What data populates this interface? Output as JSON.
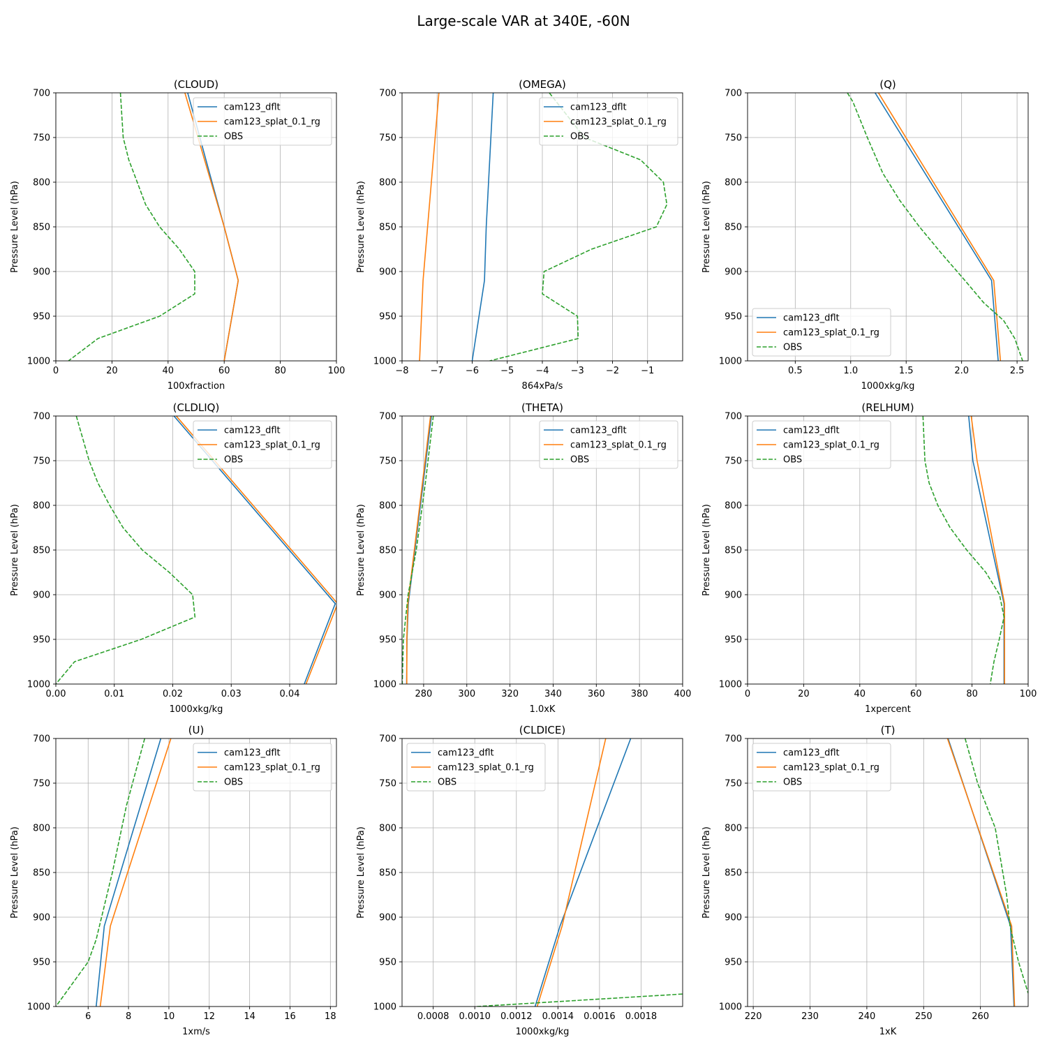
{
  "figure": {
    "suptitle": "Large-scale VAR at 340E, -60N",
    "ylabel": "Pressure Level (hPa)",
    "colors": {
      "cam123_dflt": "#1f77b4",
      "cam123_splat_0.1_rg": "#ff7f0e",
      "OBS": "#2ca02c"
    }
  },
  "chart_data": [
    {
      "type": "line",
      "title": "(CLOUD)",
      "xlabel": "100xfraction",
      "ylabel": "Pressure Level (hPa)",
      "xlim": [
        0,
        100
      ],
      "ylim": [
        1000,
        700
      ],
      "xticks": [
        0,
        20,
        40,
        60,
        80,
        100
      ],
      "xtick_labels": [
        "0",
        "20",
        "40",
        "60",
        "80",
        "100"
      ],
      "yticks": [
        700,
        750,
        800,
        850,
        900,
        950,
        1000
      ],
      "grid": true,
      "legend_loc": "upper right",
      "series": [
        {
          "name": "cam123_dflt",
          "style": "solid",
          "color": "#1f77b4",
          "x": [
            47,
            60,
            65,
            60
          ],
          "y": [
            700,
            850,
            910,
            1000
          ]
        },
        {
          "name": "cam123_splat_0.1_rg",
          "style": "solid",
          "color": "#ff7f0e",
          "x": [
            46,
            60,
            65,
            60
          ],
          "y": [
            700,
            850,
            910,
            1000
          ]
        },
        {
          "name": "OBS",
          "style": "dashed",
          "color": "#2ca02c",
          "x": [
            23,
            24,
            26,
            29,
            32,
            37,
            44,
            49.5,
            49.5,
            37,
            15,
            4.5
          ],
          "y": [
            700,
            750,
            775,
            800,
            825,
            850,
            875,
            900,
            925,
            950,
            975,
            1000
          ]
        }
      ]
    },
    {
      "type": "line",
      "title": "(OMEGA)",
      "xlabel": "864xPa/s",
      "ylabel": "Pressure Level (hPa)",
      "xlim": [
        -8,
        0
      ],
      "ylim": [
        1000,
        700
      ],
      "xticks": [
        -8,
        -7,
        -6,
        -5,
        -4,
        -3,
        -2,
        -1
      ],
      "xtick_labels": [
        "−8",
        "−7",
        "−6",
        "−5",
        "−4",
        "−3",
        "−2",
        "−1"
      ],
      "yticks": [
        700,
        750,
        800,
        850,
        900,
        950,
        1000
      ],
      "grid": true,
      "legend_loc": "upper right",
      "series": [
        {
          "name": "cam123_dflt",
          "style": "solid",
          "color": "#1f77b4",
          "x": [
            -5.4,
            -5.6,
            -5.65,
            -6.0
          ],
          "y": [
            700,
            850,
            910,
            1000
          ]
        },
        {
          "name": "cam123_splat_0.1_rg",
          "style": "solid",
          "color": "#ff7f0e",
          "x": [
            -6.95,
            -7.4,
            -7.5
          ],
          "y": [
            700,
            910,
            1000
          ]
        },
        {
          "name": "OBS",
          "style": "dashed",
          "color": "#2ca02c",
          "x": [
            -3.8,
            -2.8,
            -1.2,
            -0.55,
            -0.45,
            -0.75,
            -2.6,
            -3.95,
            -4.0,
            -3.0,
            -2.98,
            -5.5
          ],
          "y": [
            700,
            750,
            775,
            800,
            825,
            850,
            875,
            900,
            925,
            950,
            975,
            1000
          ]
        }
      ]
    },
    {
      "type": "line",
      "title": "(Q)",
      "xlabel": "1000xkg/kg",
      "ylabel": "Pressure Level (hPa)",
      "xlim": [
        0.07,
        2.6
      ],
      "ylim": [
        1000,
        700
      ],
      "xticks": [
        0.5,
        1.0,
        1.5,
        2.0,
        2.5
      ],
      "xtick_labels": [
        "0.5",
        "1.0",
        "1.5",
        "2.0",
        "2.5"
      ],
      "yticks": [
        700,
        750,
        800,
        850,
        900,
        950,
        1000
      ],
      "grid": true,
      "legend_loc": "lower left",
      "series": [
        {
          "name": "cam123_dflt",
          "style": "solid",
          "color": "#1f77b4",
          "x": [
            1.22,
            2.27,
            2.33
          ],
          "y": [
            700,
            910,
            1000
          ]
        },
        {
          "name": "cam123_splat_0.1_rg",
          "style": "solid",
          "color": "#ff7f0e",
          "x": [
            1.25,
            2.29,
            2.35
          ],
          "y": [
            700,
            910,
            1000
          ]
        },
        {
          "name": "OBS",
          "style": "dashed",
          "color": "#2ca02c",
          "x": [
            0.97,
            1.02,
            1.15,
            1.29,
            1.44,
            1.62,
            1.82,
            2.03,
            2.2,
            2.38,
            2.48,
            2.55
          ],
          "y": [
            700,
            710,
            750,
            790,
            820,
            850,
            880,
            910,
            935,
            955,
            975,
            1000
          ]
        }
      ]
    },
    {
      "type": "line",
      "title": "(CLDLIQ)",
      "xlabel": "1000xkg/kg",
      "ylabel": "Pressure Level (hPa)",
      "xlim": [
        0,
        0.048
      ],
      "ylim": [
        1000,
        700
      ],
      "xticks": [
        0.0,
        0.01,
        0.02,
        0.03,
        0.04
      ],
      "xtick_labels": [
        "0.00",
        "0.01",
        "0.02",
        "0.03",
        "0.04"
      ],
      "yticks": [
        700,
        750,
        800,
        850,
        900,
        950,
        1000
      ],
      "grid": true,
      "legend_loc": "upper right",
      "series": [
        {
          "name": "cam123_dflt",
          "style": "solid",
          "color": "#1f77b4",
          "x": [
            0.0202,
            0.0478,
            0.0425
          ],
          "y": [
            700,
            910,
            1000
          ]
        },
        {
          "name": "cam123_splat_0.1_rg",
          "style": "solid",
          "color": "#ff7f0e",
          "x": [
            0.0206,
            0.0482,
            0.0428
          ],
          "y": [
            700,
            910,
            1000
          ]
        },
        {
          "name": "OBS",
          "style": "dashed",
          "color": "#2ca02c",
          "x": [
            0.0035,
            0.0046,
            0.0057,
            0.0072,
            0.0092,
            0.0115,
            0.0148,
            0.0194,
            0.0234,
            0.0238,
            0.0146,
            0.0032,
            0.0
          ],
          "y": [
            700,
            725,
            750,
            775,
            800,
            825,
            850,
            875,
            900,
            925,
            950,
            975,
            1000
          ]
        }
      ]
    },
    {
      "type": "line",
      "title": "(THETA)",
      "xlabel": "1.0xK",
      "ylabel": "Pressure Level (hPa)",
      "xlim": [
        270,
        400
      ],
      "ylim": [
        1000,
        700
      ],
      "xticks": [
        280,
        300,
        320,
        340,
        360,
        380,
        400
      ],
      "xtick_labels": [
        "280",
        "300",
        "320",
        "340",
        "360",
        "380",
        "400"
      ],
      "yticks": [
        700,
        750,
        800,
        850,
        900,
        950,
        1000
      ],
      "grid": true,
      "legend_loc": "upper right",
      "series": [
        {
          "name": "cam123_dflt",
          "style": "solid",
          "color": "#1f77b4",
          "x": [
            283.6,
            272.9,
            272.3,
            272.1
          ],
          "y": [
            700,
            910,
            950,
            1000
          ]
        },
        {
          "name": "cam123_splat_0.1_rg",
          "style": "solid",
          "color": "#ff7f0e",
          "x": [
            283.2,
            272.7,
            272.2,
            272.2
          ],
          "y": [
            700,
            910,
            950,
            1000
          ]
        },
        {
          "name": "OBS",
          "style": "dashed",
          "color": "#2ca02c",
          "x": [
            284.5,
            280.8,
            276.6,
            272.8,
            270.6,
            270.1
          ],
          "y": [
            700,
            775,
            850,
            900,
            950,
            1000
          ]
        }
      ]
    },
    {
      "type": "line",
      "title": "(RELHUM)",
      "xlabel": "1xpercent",
      "ylabel": "Pressure Level (hPa)",
      "xlim": [
        0,
        100
      ],
      "ylim": [
        1000,
        700
      ],
      "xticks": [
        0,
        20,
        40,
        60,
        80,
        100
      ],
      "xtick_labels": [
        "0",
        "20",
        "40",
        "60",
        "80",
        "100"
      ],
      "yticks": [
        700,
        750,
        800,
        850,
        900,
        950,
        1000
      ],
      "grid": true,
      "legend_loc": "upper left",
      "series": [
        {
          "name": "cam123_dflt",
          "style": "solid",
          "color": "#1f77b4",
          "x": [
            78.8,
            80.3,
            91.4,
            91.4
          ],
          "y": [
            700,
            750,
            910,
            1000
          ]
        },
        {
          "name": "cam123_splat_0.1_rg",
          "style": "solid",
          "color": "#ff7f0e",
          "x": [
            79.7,
            81.8,
            91.6,
            91.6
          ],
          "y": [
            700,
            750,
            910,
            1000
          ]
        },
        {
          "name": "OBS",
          "style": "dashed",
          "color": "#2ca02c",
          "x": [
            62.5,
            63.2,
            64.7,
            67.8,
            72.2,
            78.1,
            84.9,
            89.8,
            91.4,
            89.7,
            87.8,
            86.5
          ],
          "y": [
            700,
            750,
            775,
            800,
            825,
            850,
            875,
            900,
            925,
            950,
            975,
            1000
          ]
        }
      ]
    },
    {
      "type": "line",
      "title": "(U)",
      "xlabel": "1xm/s",
      "ylabel": "Pressure Level (hPa)",
      "xlim": [
        4.4,
        18.3
      ],
      "ylim": [
        1000,
        700
      ],
      "xticks": [
        6,
        8,
        10,
        12,
        14,
        16,
        18
      ],
      "xtick_labels": [
        "6",
        "8",
        "10",
        "12",
        "14",
        "16",
        "18"
      ],
      "yticks": [
        700,
        750,
        800,
        850,
        900,
        950,
        1000
      ],
      "grid": true,
      "legend_loc": "upper right",
      "series": [
        {
          "name": "cam123_dflt",
          "style": "solid",
          "color": "#1f77b4",
          "x": [
            9.6,
            6.8,
            6.4
          ],
          "y": [
            700,
            910,
            1000
          ]
        },
        {
          "name": "cam123_splat_0.1_rg",
          "style": "solid",
          "color": "#ff7f0e",
          "x": [
            10.1,
            7.1,
            6.6
          ],
          "y": [
            700,
            910,
            1000
          ]
        },
        {
          "name": "OBS",
          "style": "dashed",
          "color": "#2ca02c",
          "x": [
            8.8,
            8.5,
            7.9,
            7.2,
            6.4,
            6.0,
            4.4
          ],
          "y": [
            700,
            725,
            775,
            850,
            925,
            950,
            1000
          ]
        }
      ]
    },
    {
      "type": "line",
      "title": "(CLDICE)",
      "xlabel": "1000xkg/kg",
      "ylabel": "Pressure Level (hPa)",
      "xlim": [
        0.00065,
        0.002
      ],
      "ylim": [
        1000,
        700
      ],
      "xticks": [
        0.0008,
        0.001,
        0.0012,
        0.0014,
        0.0016,
        0.0018
      ],
      "xtick_labels": [
        "0.0008",
        "0.0010",
        "0.0012",
        "0.0014",
        "0.0016",
        "0.0018"
      ],
      "yticks": [
        700,
        750,
        800,
        850,
        900,
        950,
        1000
      ],
      "grid": true,
      "legend_loc": "upper left",
      "series": [
        {
          "name": "cam123_dflt",
          "style": "solid",
          "color": "#1f77b4",
          "x": [
            0.00175,
            0.00141,
            0.00129
          ],
          "y": [
            700,
            910,
            1000
          ]
        },
        {
          "name": "cam123_splat_0.1_rg",
          "style": "solid",
          "color": "#ff7f0e",
          "x": [
            0.00163,
            0.00142,
            0.0013
          ],
          "y": [
            700,
            910,
            1000
          ]
        },
        {
          "name": "OBS",
          "style": "dashed",
          "color": "#2ca02c",
          "x": [
            0.00101,
            0.002
          ],
          "y": [
            1000,
            986
          ]
        }
      ]
    },
    {
      "type": "line",
      "title": "(T)",
      "xlabel": "1xK",
      "ylabel": "Pressure Level (hPa)",
      "xlim": [
        219,
        268.4
      ],
      "ylim": [
        1000,
        700
      ],
      "xticks": [
        220,
        230,
        240,
        250,
        260
      ],
      "xtick_labels": [
        "220",
        "230",
        "240",
        "250",
        "260"
      ],
      "yticks": [
        700,
        750,
        800,
        850,
        900,
        950,
        1000
      ],
      "grid": true,
      "legend_loc": "upper left",
      "series": [
        {
          "name": "cam123_dflt",
          "style": "solid",
          "color": "#1f77b4",
          "x": [
            254.3,
            265.3,
            265.9
          ],
          "y": [
            700,
            910,
            1000
          ]
        },
        {
          "name": "cam123_splat_0.1_rg",
          "style": "solid",
          "color": "#ff7f0e",
          "x": [
            254.2,
            265.5,
            266.0
          ],
          "y": [
            700,
            910,
            1000
          ]
        },
        {
          "name": "OBS",
          "style": "dashed",
          "color": "#2ca02c",
          "x": [
            257.3,
            259.5,
            262.6,
            264.6,
            265.2,
            266.7,
            268.4
          ],
          "y": [
            700,
            750,
            800,
            875,
            910,
            950,
            985
          ]
        }
      ]
    }
  ]
}
